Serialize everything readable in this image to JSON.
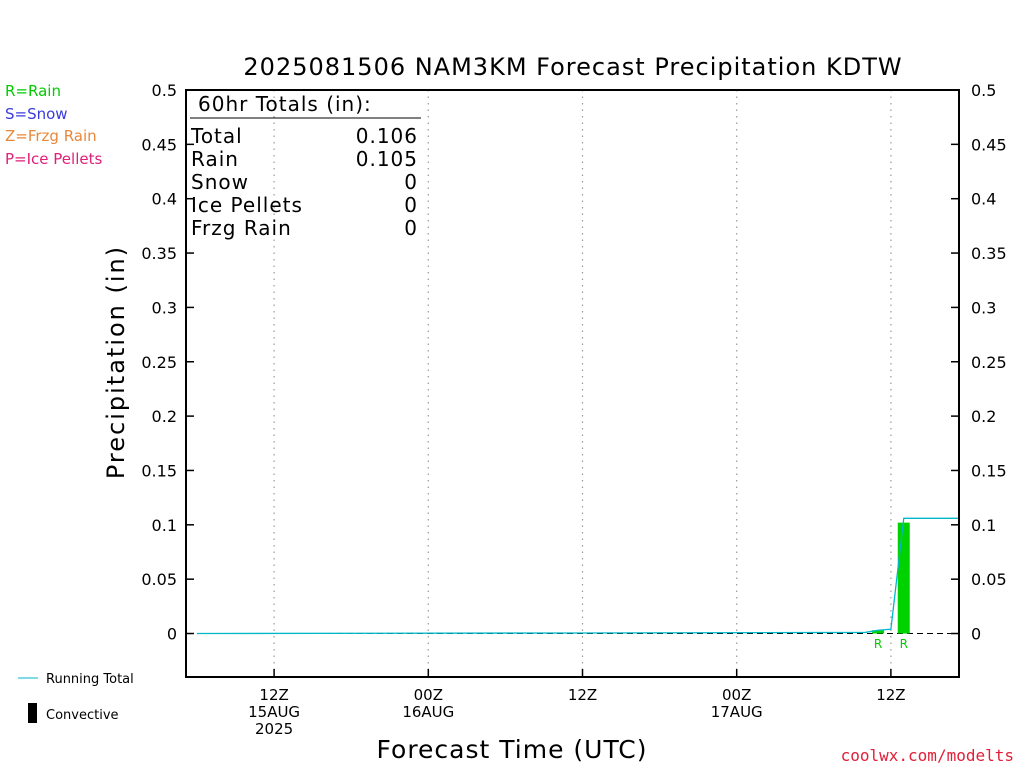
{
  "chart_data": {
    "type": "bar",
    "title": "2025081506 NAM3KM Forecast Precipitation KDTW",
    "xlabel": "Forecast Time (UTC)",
    "ylabel": "Precipitation (in)",
    "ylim": [
      -0.04,
      0.5
    ],
    "yticks": [
      "0.5",
      "0.45",
      "0.4",
      "0.35",
      "0.3",
      "0.25",
      "0.2",
      "0.15",
      "0.1",
      "0.05",
      "0"
    ],
    "y_tick_values": [
      0.5,
      0.45,
      0.4,
      0.35,
      0.3,
      0.25,
      0.2,
      0.15,
      0.1,
      0.05,
      0
    ],
    "x_unit": "forecast hour",
    "xlim": [
      0,
      60
    ],
    "x_ticks": [
      {
        "hour": 6,
        "lines": [
          "12Z",
          "15AUG",
          "2025"
        ]
      },
      {
        "hour": 18,
        "lines": [
          "00Z",
          "16AUG",
          ""
        ]
      },
      {
        "hour": 30,
        "lines": [
          "12Z",
          "",
          ""
        ]
      },
      {
        "hour": 42,
        "lines": [
          "00Z",
          "17AUG",
          ""
        ]
      },
      {
        "hour": 54,
        "lines": [
          "12Z",
          "",
          ""
        ]
      }
    ],
    "grid": "vertical dotted at tick hours",
    "bars": [
      {
        "x": 53,
        "value": 0.003,
        "type": "Rain",
        "label": "R"
      },
      {
        "x": 55,
        "value": 0.102,
        "type": "Rain",
        "label": "R"
      }
    ],
    "running_total": {
      "x": [
        0,
        30,
        52,
        53,
        54,
        55,
        60
      ],
      "y": [
        0,
        0.0005,
        0.001,
        0.003,
        0.004,
        0.106,
        0.106
      ]
    },
    "legend": [
      {
        "text": "R=Rain",
        "color": "#00cc00"
      },
      {
        "text": "S=Snow",
        "color": "#3b3bdc"
      },
      {
        "text": "Z=Frzg Rain",
        "color": "#e8883a"
      },
      {
        "text": "P=Ice Pellets",
        "color": "#e0207a"
      }
    ],
    "bottom_legend": [
      {
        "text": "Running Total",
        "color": "#00b8c8"
      },
      {
        "text": "Convective",
        "color": "#000000"
      }
    ],
    "totals": {
      "header": "60hr Totals (in):",
      "rows": [
        {
          "name": "Total",
          "value": "0.106"
        },
        {
          "name": "Rain",
          "value": "0.105"
        },
        {
          "name": "Snow",
          "value": "0"
        },
        {
          "name": "Ice Pellets",
          "value": "0"
        },
        {
          "name": "Frzg Rain",
          "value": "0"
        }
      ]
    }
  },
  "footer": {
    "credit": "coolwx.com/modelts"
  },
  "colors": {
    "rain": "#00d200",
    "running_total": "#00b8c8",
    "axis": "#000000",
    "credit": "#e0203a"
  }
}
